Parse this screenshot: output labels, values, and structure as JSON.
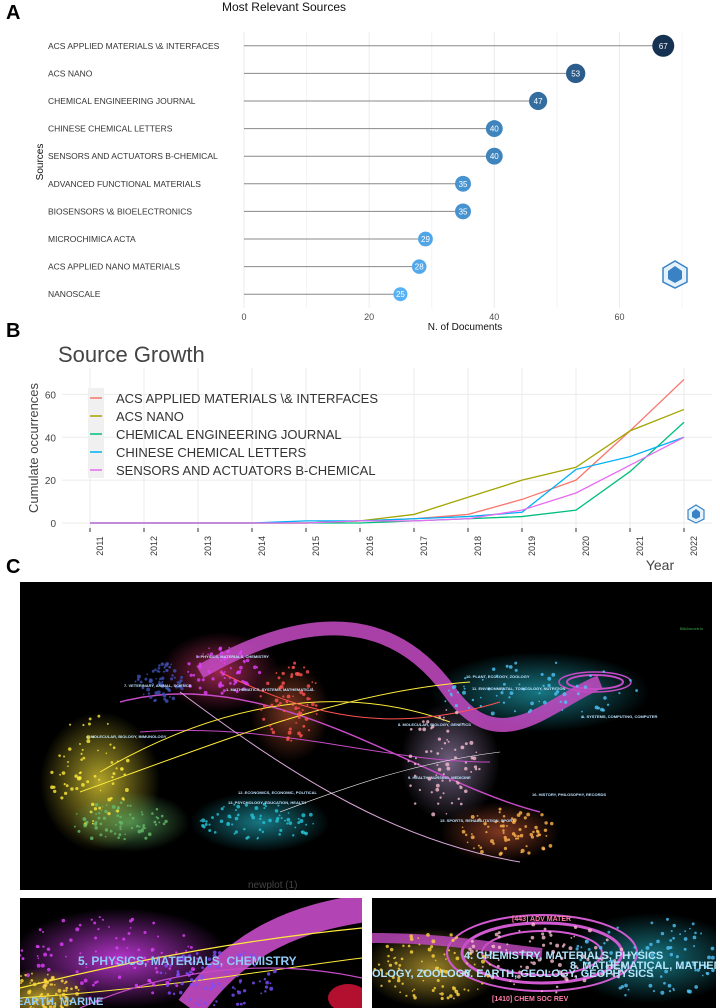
{
  "panels": {
    "a": "A",
    "b": "B",
    "c": "C"
  },
  "chart_data": [
    {
      "type": "lollipop",
      "title": "Most Relevant Sources",
      "xlabel": "N. of Documents",
      "ylabel": "Sources",
      "xlim": [
        0,
        70
      ],
      "xticks": [
        0,
        20,
        40,
        60
      ],
      "categories": [
        "ACS APPLIED MATERIALS \\& INTERFACES",
        "ACS NANO",
        "CHEMICAL ENGINEERING JOURNAL",
        "CHINESE CHEMICAL LETTERS",
        "SENSORS AND ACTUATORS B-CHEMICAL",
        "ADVANCED FUNCTIONAL MATERIALS",
        "BIOSENSORS \\& BIOELECTRONICS",
        "MICROCHIMICA ACTA",
        "ACS APPLIED NANO MATERIALS",
        "NANOSCALE"
      ],
      "values": [
        67,
        53,
        47,
        40,
        40,
        35,
        35,
        29,
        28,
        25
      ]
    },
    {
      "type": "line",
      "title": "Source Growth",
      "xlabel": "Year",
      "ylabel": "Cumulate occurrences",
      "x": [
        2011,
        2012,
        2013,
        2014,
        2015,
        2016,
        2017,
        2018,
        2019,
        2020,
        2021,
        2022
      ],
      "yticks": [
        0,
        20,
        40,
        60
      ],
      "ylim": [
        0,
        70
      ],
      "series": [
        {
          "name": "ACS APPLIED MATERIALS \\& INTERFACES",
          "color": "#f8766d",
          "values": [
            0,
            0,
            0,
            0,
            0,
            1,
            2,
            4,
            11,
            20,
            43,
            67
          ]
        },
        {
          "name": "ACS NANO",
          "color": "#a3a500",
          "values": [
            0,
            0,
            0,
            0,
            0,
            1,
            4,
            12,
            20,
            26,
            43,
            53
          ]
        },
        {
          "name": "CHEMICAL ENGINEERING JOURNAL",
          "color": "#00bf7d",
          "values": [
            0,
            0,
            0,
            0,
            0,
            0,
            1,
            2,
            3,
            6,
            24,
            47
          ]
        },
        {
          "name": "CHINESE CHEMICAL LETTERS",
          "color": "#00b0f6",
          "values": [
            0,
            0,
            0,
            0,
            1,
            1,
            2,
            3,
            5,
            25,
            31,
            40
          ]
        },
        {
          "name": "SENSORS AND ACTUATORS B-CHEMICAL",
          "color": "#e76bf3",
          "values": [
            0,
            0,
            0,
            0,
            0,
            1,
            1,
            2,
            6,
            14,
            27,
            40
          ]
        }
      ]
    }
  ],
  "overlay": {
    "legend_small": "Bibliometrix",
    "labels": [
      "5. PHYSICS, MATERIALS, CHEMISTRY",
      "7. VETERINARY, ANIMAL, SCIENCE",
      "1. MATHEMATICS, SYSTEMS, MATHEMATICAL",
      "4. MOLECULAR, BIOLOGY, IMMUNOLOGY",
      "8. MOLECULAR, BIOLOGY, GENETICS",
      "9. HEALTH, NURSING, MEDICINE",
      "12. ECONOMICS, ECONOMIC, POLITICAL",
      "13. PSYCHOLOGY, EDUCATION, HEALTH",
      "10. PLANT, ECOLOGY, ZOOLOGY",
      "11. ENVIRONMENTAL, TOXICOLOGY, NUTRITION",
      "1. SYSTEMS, COMPUTING, COMPUTER",
      "16. HISTORY, PHILOSOPHY, RECORDS",
      "15. SPORTS, REHABILITATION, SPORT"
    ],
    "zoom_left_title": "newplot (1)",
    "zoom_left_main": "5. PHYSICS, MATERIALS, CHEMISTRY",
    "zoom_left_bottom": "EARTH, MARINE",
    "zoom_right_top": "[443] ADV MATER",
    "zoom_right_main": "4. CHEMISTRY, MATERIALS, PHYSICS",
    "zoom_right_mid": "OLOGY, ZOOLOGY",
    "zoom_right_earth": "6. EARTH, GEOLOGY, GEOPHYSICS",
    "zoom_right_math": "8. MATHEMATICAL, MATHEM",
    "zoom_right_bottom": "[1410] CHEM SOC REV"
  }
}
